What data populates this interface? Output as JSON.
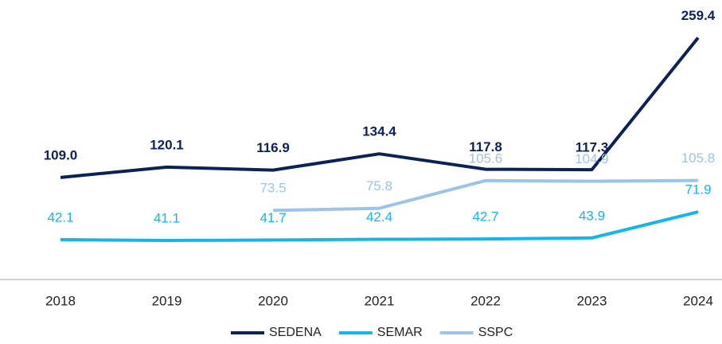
{
  "chart_data": {
    "type": "line",
    "categories": [
      "2018",
      "2019",
      "2020",
      "2021",
      "2022",
      "2023",
      "2024"
    ],
    "series": [
      {
        "name": "SEDENA",
        "color": "#0b2158",
        "values": [
          109.0,
          120.1,
          116.9,
          134.4,
          117.8,
          117.3,
          259.4
        ],
        "value_labels": [
          "109.0",
          "120.1",
          "116.9",
          "134.4",
          "117.8",
          "117.3",
          "259.4"
        ]
      },
      {
        "name": "SEMAR",
        "color": "#13b5ea",
        "values": [
          42.1,
          41.1,
          41.7,
          42.4,
          42.7,
          43.9,
          71.9
        ]
      },
      {
        "name": "SSPC",
        "color": "#9dc3e6",
        "values": [
          null,
          null,
          73.5,
          75.8,
          105.6,
          104.9,
          105.8
        ]
      }
    ],
    "ylim": [
      0,
      300
    ],
    "legend": "bottom"
  }
}
